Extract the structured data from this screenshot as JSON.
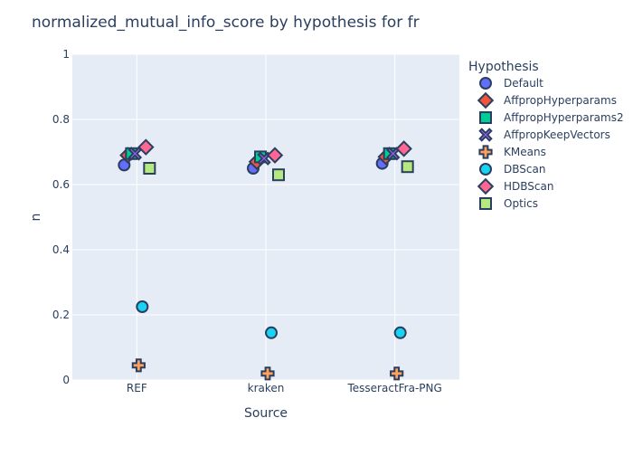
{
  "chart_data": {
    "type": "scatter",
    "title": "normalized_mutual_info_score by hypothesis for fr",
    "xlabel": "Source",
    "ylabel": "n",
    "categories": [
      "REF",
      "kraken",
      "TesseractFra-PNG"
    ],
    "ylim": [
      0,
      1
    ],
    "yticks": [
      0,
      0.2,
      0.4,
      0.6,
      0.8,
      1
    ],
    "ytick_labels": [
      "0",
      "0.2",
      "0.4",
      "0.6",
      "0.8",
      "1"
    ],
    "grid": true,
    "legend": {
      "title": "Hypothesis",
      "placement": "right"
    },
    "series": [
      {
        "name": "Default",
        "symbol": "circle",
        "color": "#636efa",
        "values": [
          0.66,
          0.65,
          0.665
        ]
      },
      {
        "name": "AffpropHyperparams",
        "symbol": "diamond",
        "color": "#ef553b",
        "values": [
          0.69,
          0.67,
          0.685
        ]
      },
      {
        "name": "AffpropHyperparams2",
        "symbol": "square",
        "color": "#00cc96",
        "values": [
          0.695,
          0.685,
          0.695
        ]
      },
      {
        "name": "AffpropKeepVectors",
        "symbol": "x",
        "color": "#ab63fa",
        "values": [
          0.695,
          0.68,
          0.695
        ]
      },
      {
        "name": "KMeans",
        "symbol": "cross",
        "color": "#ffa15a",
        "values": [
          0.045,
          0.02,
          0.02
        ]
      },
      {
        "name": "DBScan",
        "symbol": "circle",
        "color": "#19d3f3",
        "values": [
          0.225,
          0.145,
          0.145
        ]
      },
      {
        "name": "HDBScan",
        "symbol": "diamond",
        "color": "#ff6692",
        "values": [
          0.715,
          0.69,
          0.71
        ]
      },
      {
        "name": "Optics",
        "symbol": "square",
        "color": "#b6e880",
        "values": [
          0.65,
          0.63,
          0.655
        ]
      }
    ]
  },
  "colors": {
    "plot_background": "#e5ecf6",
    "gridline": "#ffffff",
    "marker_outline": "#2a3f5f",
    "text": "#2a3f5f"
  }
}
